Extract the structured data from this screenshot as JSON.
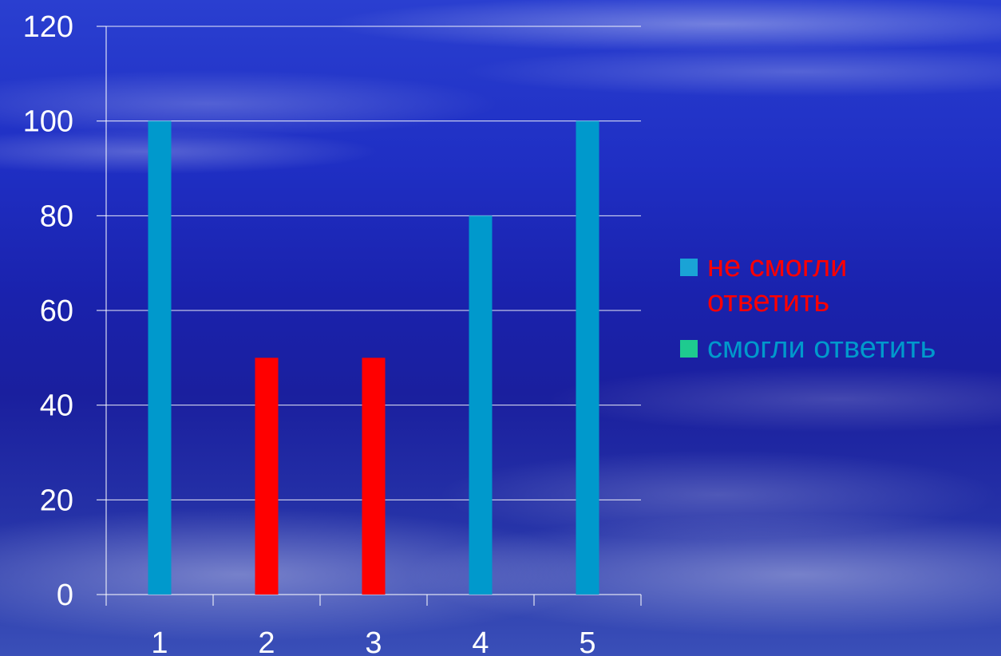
{
  "chart_data": {
    "type": "bar",
    "categories": [
      "1",
      "2",
      "3",
      "4",
      "5"
    ],
    "values": [
      100,
      50,
      50,
      80,
      100
    ],
    "bar_colors": [
      "#0099cc",
      "#ff0000",
      "#ff0000",
      "#0099cc",
      "#0099cc"
    ],
    "ylim": [
      0,
      120
    ],
    "y_ticks": [
      0,
      20,
      40,
      60,
      80,
      100,
      120
    ],
    "grid": true,
    "legend_placement": "right",
    "legend": [
      {
        "label": "не смогли ответить",
        "swatch_color": "#1aa3d6",
        "text_color": "#ff0000"
      },
      {
        "label": "смогли ответить",
        "swatch_color": "#1ecb8f",
        "text_color": "#0099cc"
      }
    ]
  }
}
